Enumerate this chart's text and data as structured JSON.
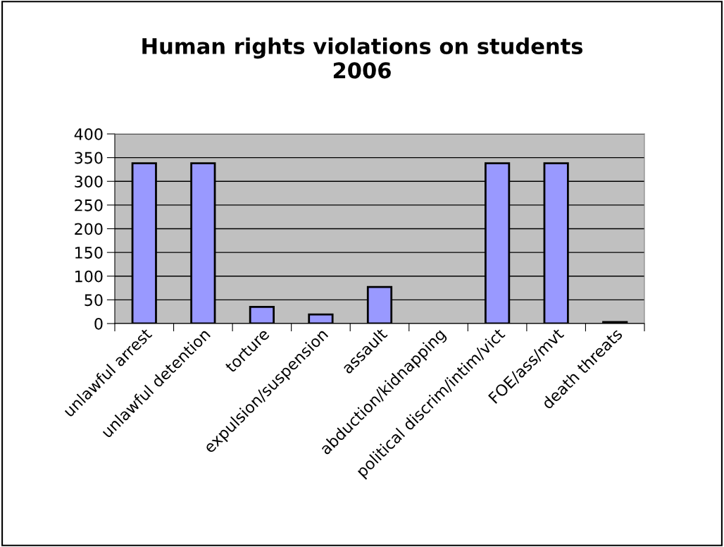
{
  "chart_data": {
    "type": "bar",
    "title": "Human rights violations on students\n2006",
    "categories": [
      "unlawful arrest",
      "unlawful detention",
      "torture",
      "expulsion/suspension",
      "assault",
      "abduction/kidnapping",
      "political discrim/intim/vict",
      "FOE/ass/mvt",
      "death threats"
    ],
    "values": [
      338,
      338,
      35,
      19,
      77,
      0,
      338,
      338,
      3
    ],
    "color": "#9999ff",
    "ylim": [
      0,
      400
    ],
    "yticks": [
      0,
      50,
      100,
      150,
      200,
      250,
      300,
      350,
      400
    ],
    "grid": "y",
    "legend": false
  }
}
